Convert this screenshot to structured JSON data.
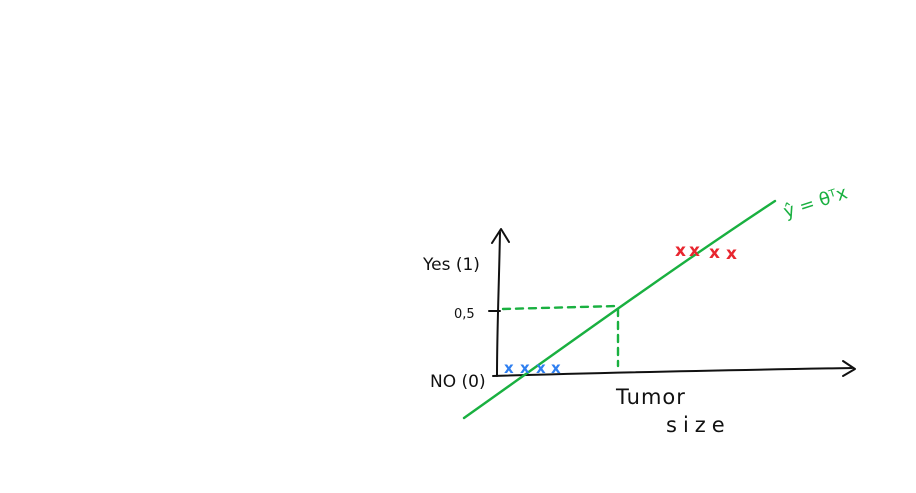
{
  "labels": {
    "yes": "Yes (1)",
    "half": "0,5",
    "no": "NO (0)",
    "xlabel_line1": "Tumor",
    "xlabel_line2": "size",
    "hypothesis": "ŷ = θᵀx"
  },
  "marks": {
    "negative_symbol": "x",
    "positive_symbol": "x",
    "negative_count": 4,
    "positive_count": 4
  },
  "colors": {
    "axes": "#111111",
    "fit_line": "#19b040",
    "negative_class": "#2f7ff0",
    "positive_class": "#e8262f"
  }
}
